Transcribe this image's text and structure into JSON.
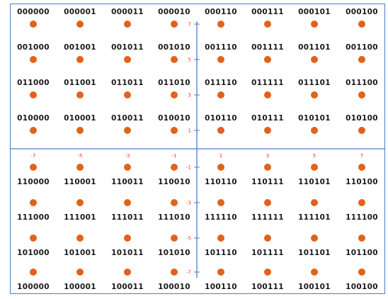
{
  "diagram": {
    "dot_color": "#e2621b",
    "axis_color": "#4a7fc1",
    "tick_label_color": "#e03a3a",
    "text_color": "#1a1a1a",
    "axis_arrows": false
  },
  "x_ticks": [
    "-7",
    "-5",
    "-3",
    "-1",
    "1",
    "3",
    "5",
    "7"
  ],
  "y_ticks": [
    "7",
    "5",
    "3",
    "1",
    "-1",
    "-3",
    "-5",
    "-7"
  ],
  "rows": [
    {
      "y": 7,
      "label_position": "above",
      "codes": [
        "000000",
        "000001",
        "000011",
        "000010",
        "000110",
        "000111",
        "000101",
        "000100"
      ]
    },
    {
      "y": 5,
      "label_position": "above",
      "codes": [
        "001000",
        "001001",
        "001011",
        "001010",
        "001110",
        "001111",
        "001101",
        "001100"
      ]
    },
    {
      "y": 3,
      "label_position": "above",
      "codes": [
        "011000",
        "011001",
        "011011",
        "011010",
        "011110",
        "011111",
        "011101",
        "011100"
      ]
    },
    {
      "y": 1,
      "label_position": "above",
      "codes": [
        "010000",
        "010001",
        "010011",
        "010010",
        "010110",
        "010111",
        "010101",
        "010100"
      ]
    },
    {
      "y": -1,
      "label_position": "below",
      "codes": [
        "110000",
        "110001",
        "110011",
        "110010",
        "110110",
        "110111",
        "110101",
        "110100"
      ]
    },
    {
      "y": -3,
      "label_position": "below",
      "codes": [
        "111000",
        "111001",
        "111011",
        "111010",
        "111110",
        "111111",
        "111101",
        "111100"
      ]
    },
    {
      "y": -5,
      "label_position": "below",
      "codes": [
        "101000",
        "101001",
        "101011",
        "101010",
        "101110",
        "101111",
        "101101",
        "101100"
      ]
    },
    {
      "y": -7,
      "label_position": "below",
      "codes": [
        "100000",
        "100001",
        "100011",
        "100010",
        "100110",
        "100111",
        "100101",
        "100100"
      ]
    }
  ]
}
